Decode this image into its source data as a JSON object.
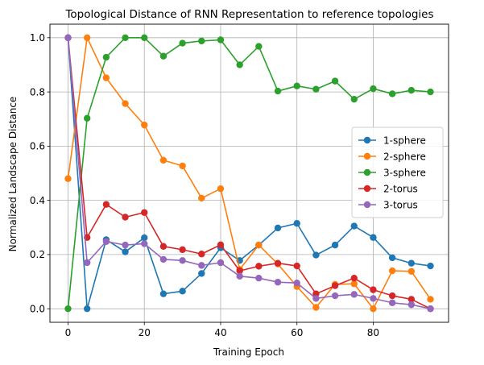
{
  "chart_data": {
    "type": "line",
    "title": "Topological Distance of RNN Representation to reference topologies",
    "xlabel": "Training Epoch",
    "ylabel": "Normalized Landscape Distance",
    "xlim": [
      -4.75,
      99.75
    ],
    "ylim": [
      -0.05,
      1.05
    ],
    "xticks": [
      0,
      20,
      40,
      60,
      80
    ],
    "yticks": [
      0.0,
      0.2,
      0.4,
      0.6,
      0.8,
      1.0
    ],
    "xtick_labels": [
      "0",
      "20",
      "40",
      "60",
      "80"
    ],
    "ytick_labels": [
      "0.0",
      "0.2",
      "0.4",
      "0.6",
      "0.8",
      "1.0"
    ],
    "grid": true,
    "legend_position": "center-right",
    "x": [
      0,
      5,
      10,
      15,
      20,
      25,
      30,
      35,
      40,
      45,
      50,
      55,
      60,
      65,
      70,
      75,
      80,
      85,
      90,
      95
    ],
    "series": [
      {
        "name": "1-sphere",
        "color": "#1f77b4",
        "values": [
          1.0,
          0.0,
          0.255,
          0.21,
          0.262,
          0.055,
          0.065,
          0.13,
          0.225,
          0.178,
          0.235,
          0.298,
          0.315,
          0.198,
          0.235,
          0.305,
          0.263,
          0.188,
          0.168,
          0.158
        ]
      },
      {
        "name": "2-sphere",
        "color": "#ff7f0e",
        "values": [
          0.48,
          1.0,
          0.852,
          0.757,
          0.678,
          0.548,
          0.527,
          0.408,
          0.443,
          0.145,
          0.235,
          0.165,
          0.082,
          0.005,
          0.09,
          0.092,
          0.0,
          0.14,
          0.138,
          0.035
        ]
      },
      {
        "name": "3-sphere",
        "color": "#2ca02c",
        "values": [
          0.0,
          0.703,
          0.928,
          1.0,
          1.0,
          0.932,
          0.98,
          0.988,
          0.992,
          0.9,
          0.968,
          0.803,
          0.822,
          0.81,
          0.84,
          0.773,
          0.812,
          0.793,
          0.806,
          0.8
        ]
      },
      {
        "name": "2-torus",
        "color": "#d62728",
        "values": [
          1.0,
          0.263,
          0.385,
          0.338,
          0.355,
          0.23,
          0.218,
          0.202,
          0.236,
          0.14,
          0.157,
          0.168,
          0.158,
          0.055,
          0.085,
          0.113,
          0.07,
          0.048,
          0.035,
          0.0
        ]
      },
      {
        "name": "3-torus",
        "color": "#9467bd",
        "values": [
          1.0,
          0.17,
          0.248,
          0.235,
          0.24,
          0.182,
          0.178,
          0.16,
          0.17,
          0.12,
          0.113,
          0.098,
          0.095,
          0.038,
          0.048,
          0.053,
          0.038,
          0.022,
          0.015,
          0.0
        ]
      }
    ]
  }
}
